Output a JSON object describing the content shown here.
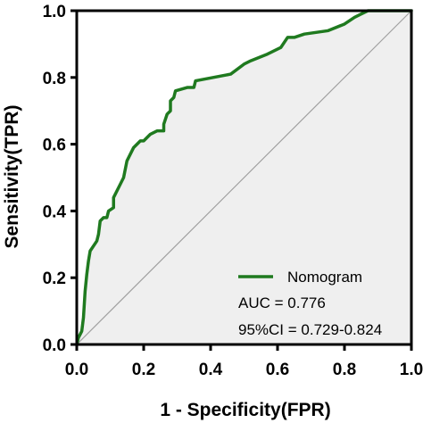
{
  "chart_data": {
    "type": "line",
    "xlabel": "1 - Specificity(FPR)",
    "ylabel": "Sensitivity(TPR)",
    "xlim": [
      0,
      1
    ],
    "ylim": [
      0,
      1
    ],
    "x_ticks": [
      "0.0",
      "0.2",
      "0.4",
      "0.6",
      "0.8",
      "1.0"
    ],
    "y_ticks": [
      "0.0",
      "0.2",
      "0.4",
      "0.6",
      "0.8",
      "1.0"
    ],
    "grid": false,
    "legend_position": "bottom-right",
    "area_fill_color": "#efefef",
    "series": [
      {
        "name": "Nomogram",
        "color": "#1f7a1f",
        "points": [
          [
            0.0,
            0.0
          ],
          [
            0.005,
            0.02
          ],
          [
            0.01,
            0.03
          ],
          [
            0.015,
            0.04
          ],
          [
            0.02,
            0.08
          ],
          [
            0.025,
            0.16
          ],
          [
            0.03,
            0.21
          ],
          [
            0.035,
            0.25
          ],
          [
            0.04,
            0.28
          ],
          [
            0.06,
            0.31
          ],
          [
            0.065,
            0.33
          ],
          [
            0.07,
            0.37
          ],
          [
            0.08,
            0.38
          ],
          [
            0.09,
            0.38
          ],
          [
            0.095,
            0.4
          ],
          [
            0.11,
            0.41
          ],
          [
            0.11,
            0.44
          ],
          [
            0.13,
            0.48
          ],
          [
            0.14,
            0.5
          ],
          [
            0.15,
            0.55
          ],
          [
            0.17,
            0.59
          ],
          [
            0.19,
            0.61
          ],
          [
            0.2,
            0.61
          ],
          [
            0.22,
            0.63
          ],
          [
            0.24,
            0.64
          ],
          [
            0.26,
            0.64
          ],
          [
            0.26,
            0.66
          ],
          [
            0.27,
            0.69
          ],
          [
            0.28,
            0.7
          ],
          [
            0.28,
            0.73
          ],
          [
            0.29,
            0.74
          ],
          [
            0.295,
            0.76
          ],
          [
            0.33,
            0.77
          ],
          [
            0.35,
            0.77
          ],
          [
            0.355,
            0.79
          ],
          [
            0.46,
            0.81
          ],
          [
            0.5,
            0.84
          ],
          [
            0.52,
            0.85
          ],
          [
            0.57,
            0.87
          ],
          [
            0.61,
            0.89
          ],
          [
            0.63,
            0.92
          ],
          [
            0.65,
            0.92
          ],
          [
            0.68,
            0.93
          ],
          [
            0.75,
            0.94
          ],
          [
            0.8,
            0.96
          ],
          [
            0.83,
            0.98
          ],
          [
            0.85,
            0.99
          ],
          [
            0.87,
            1.0
          ],
          [
            1.0,
            1.0
          ]
        ]
      }
    ],
    "reference_line": {
      "points": [
        [
          0,
          0
        ],
        [
          1,
          1
        ]
      ],
      "color": "#a0a0a0"
    },
    "annotations": [
      "AUC = 0.776",
      "95%CI = 0.729-0.824"
    ]
  }
}
